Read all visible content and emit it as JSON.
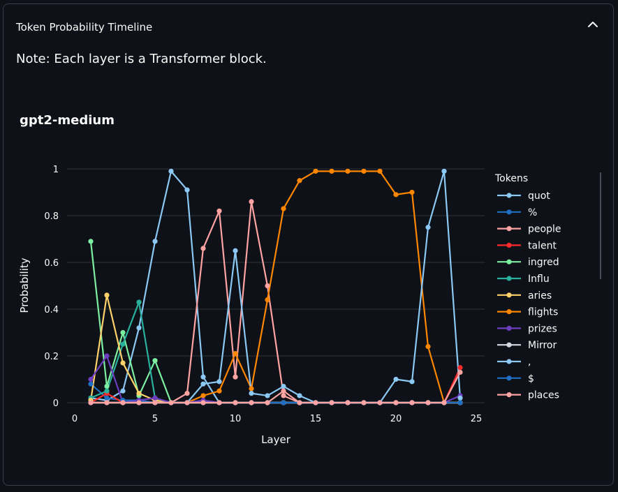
{
  "expander": {
    "title": "Token Probability Timeline",
    "note": "Note: Each layer is a Transformer block."
  },
  "chart_data": {
    "type": "line",
    "title": "gpt2-medium",
    "xlabel": "Layer",
    "ylabel": "Probability",
    "xlim": [
      0,
      25
    ],
    "ylim": [
      0,
      1
    ],
    "xticks": [
      0,
      5,
      10,
      15,
      20,
      25
    ],
    "yticks": [
      0,
      0.2,
      0.4,
      0.6,
      0.8,
      1
    ],
    "legend_title": "Tokens",
    "legend_position": "right",
    "grid": true,
    "x": [
      1,
      2,
      3,
      4,
      5,
      6,
      7,
      8,
      9,
      10,
      11,
      12,
      13,
      14,
      15,
      16,
      17,
      18,
      19,
      20,
      21,
      22,
      23,
      24
    ],
    "series": [
      {
        "name": "quot",
        "color": "#8cc8f4",
        "values": [
          0.02,
          0.01,
          0.05,
          0.32,
          0.69,
          0.99,
          0.91,
          0.11,
          0.0,
          0.0,
          0.0,
          0.0,
          0.0,
          0.0,
          0.0,
          0.0,
          0.0,
          0.0,
          0.0,
          0.0,
          0.0,
          0.0,
          0.0,
          0.0
        ]
      },
      {
        "name": "%",
        "color": "#1f6fc4",
        "values": [
          0.08,
          0.02,
          0.01,
          0.01,
          0.0,
          0.0,
          0.0,
          0.0,
          0.0,
          0.0,
          0.0,
          0.0,
          0.0,
          0.0,
          0.0,
          0.0,
          0.0,
          0.0,
          0.0,
          0.0,
          0.0,
          0.0,
          0.0,
          0.0
        ]
      },
      {
        "name": "people",
        "color": "#ffa3a3",
        "values": [
          0.0,
          0.0,
          0.0,
          0.0,
          0.0,
          0.0,
          0.04,
          0.66,
          0.82,
          0.11,
          0.86,
          0.5,
          0.03,
          0.0,
          0.0,
          0.0,
          0.0,
          0.0,
          0.0,
          0.0,
          0.0,
          0.0,
          0.0,
          0.0
        ]
      },
      {
        "name": "talent",
        "color": "#ff2b2b",
        "values": [
          0.0,
          0.04,
          0.0,
          0.0,
          0.0,
          0.0,
          0.0,
          0.0,
          0.0,
          0.0,
          0.0,
          0.0,
          0.0,
          0.0,
          0.0,
          0.0,
          0.0,
          0.0,
          0.0,
          0.0,
          0.0,
          0.0,
          0.0,
          0.15
        ]
      },
      {
        "name": "ingred",
        "color": "#7defa1",
        "values": [
          0.69,
          0.07,
          0.3,
          0.03,
          0.18,
          0.0,
          0.0,
          0.0,
          0.0,
          0.0,
          0.0,
          0.0,
          0.0,
          0.0,
          0.0,
          0.0,
          0.0,
          0.0,
          0.0,
          0.0,
          0.0,
          0.0,
          0.0,
          0.0
        ]
      },
      {
        "name": "Influ",
        "color": "#29b09d",
        "values": [
          0.02,
          0.05,
          0.25,
          0.43,
          0.02,
          0.0,
          0.0,
          0.0,
          0.0,
          0.0,
          0.0,
          0.0,
          0.0,
          0.0,
          0.0,
          0.0,
          0.0,
          0.0,
          0.0,
          0.0,
          0.0,
          0.0,
          0.0,
          0.0
        ]
      },
      {
        "name": "aries",
        "color": "#ffd16a",
        "values": [
          0.01,
          0.46,
          0.17,
          0.04,
          0.01,
          0.0,
          0.0,
          0.0,
          0.0,
          0.0,
          0.0,
          0.0,
          0.0,
          0.0,
          0.0,
          0.0,
          0.0,
          0.0,
          0.0,
          0.0,
          0.0,
          0.0,
          0.0,
          0.0
        ]
      },
      {
        "name": "flights",
        "color": "#ff8700",
        "values": [
          0.0,
          0.0,
          0.0,
          0.0,
          0.0,
          0.0,
          0.0,
          0.03,
          0.05,
          0.21,
          0.06,
          0.44,
          0.83,
          0.95,
          0.99,
          0.99,
          0.99,
          0.99,
          0.99,
          0.89,
          0.9,
          0.24,
          0.0,
          0.0
        ]
      },
      {
        "name": "prizes",
        "color": "#6d3fc0",
        "values": [
          0.1,
          0.2,
          0.0,
          0.01,
          0.02,
          0.0,
          0.0,
          0.01,
          0.0,
          0.0,
          0.0,
          0.0,
          0.0,
          0.0,
          0.0,
          0.0,
          0.0,
          0.0,
          0.0,
          0.0,
          0.0,
          0.0,
          0.0,
          0.03
        ]
      },
      {
        "name": "Mirror",
        "color": "#d5dae5",
        "values": [
          0.0,
          0.0,
          0.0,
          0.0,
          0.0,
          0.0,
          0.0,
          0.0,
          0.0,
          0.0,
          0.0,
          0.0,
          0.0,
          0.0,
          0.0,
          0.0,
          0.0,
          0.0,
          0.0,
          0.0,
          0.0,
          0.0,
          0.0,
          0.0
        ]
      },
      {
        "name": ",",
        "color": "#8cc8f4",
        "values": [
          0.0,
          0.0,
          0.0,
          0.0,
          0.0,
          0.0,
          0.0,
          0.08,
          0.09,
          0.65,
          0.04,
          0.03,
          0.07,
          0.03,
          0.0,
          0.0,
          0.0,
          0.0,
          0.0,
          0.1,
          0.09,
          0.75,
          0.99,
          0.02
        ]
      },
      {
        "name": "$",
        "color": "#1f6fc4",
        "values": [
          0.0,
          0.0,
          0.0,
          0.0,
          0.0,
          0.0,
          0.0,
          0.0,
          0.0,
          0.0,
          0.0,
          0.0,
          0.0,
          0.0,
          0.0,
          0.0,
          0.0,
          0.0,
          0.0,
          0.0,
          0.0,
          0.0,
          0.0,
          0.0
        ]
      },
      {
        "name": "places",
        "color": "#ffa3a3",
        "values": [
          0.0,
          0.0,
          0.0,
          0.0,
          0.0,
          0.0,
          0.0,
          0.0,
          0.0,
          0.0,
          0.0,
          0.0,
          0.05,
          0.0,
          0.0,
          0.0,
          0.0,
          0.0,
          0.0,
          0.0,
          0.0,
          0.0,
          0.0,
          0.13
        ]
      }
    ]
  }
}
